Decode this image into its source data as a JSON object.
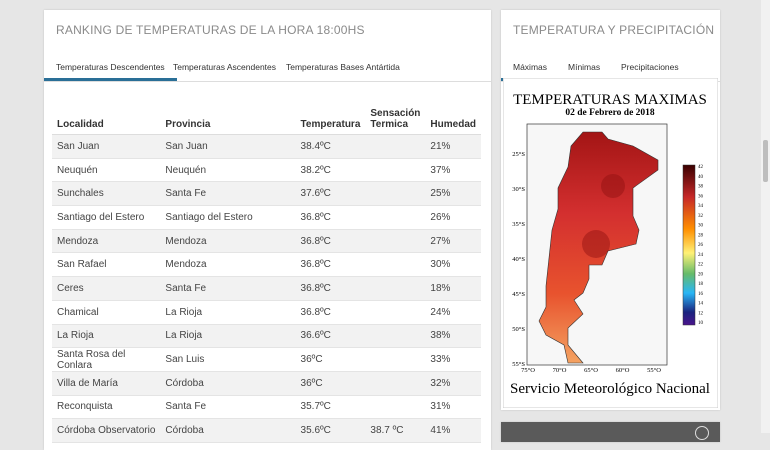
{
  "ranking": {
    "title": "RANKING DE TEMPERATURAS DE LA HORA 18:00HS",
    "tabs": [
      "Temperaturas Descendentes",
      "Temperaturas Ascendentes",
      "Temperaturas Bases Antártida"
    ],
    "table": {
      "headers": [
        "Localidad",
        "Provincia",
        "Temperatura",
        "Sensación Termica",
        "Humedad"
      ],
      "rows": [
        [
          "San Juan",
          "San Juan",
          "38.4ºC",
          null,
          "21%"
        ],
        [
          "Neuquén",
          "Neuquén",
          "38.2ºC",
          null,
          "37%"
        ],
        [
          "Sunchales",
          "Santa Fe",
          "37.6ºC",
          null,
          "25%"
        ],
        [
          "Santiago del Estero",
          "Santiago del Estero",
          "36.8ºC",
          null,
          "26%"
        ],
        [
          "Mendoza",
          "Mendoza",
          "36.8ºC",
          null,
          "27%"
        ],
        [
          "San Rafael",
          "Mendoza",
          "36.8ºC",
          null,
          "30%"
        ],
        [
          "Ceres",
          "Santa Fe",
          "36.8ºC",
          null,
          "18%"
        ],
        [
          "Chamical",
          "La Rioja",
          "36.8ºC",
          null,
          "24%"
        ],
        [
          "La Rioja",
          "La Rioja",
          "36.6ºC",
          null,
          "38%"
        ],
        [
          "Santa Rosa del Conlara",
          "San Luis",
          "36ºC",
          null,
          "33%"
        ],
        [
          "Villa de María",
          "Córdoba",
          "36ºC",
          null,
          "32%"
        ],
        [
          "Reconquista",
          "Santa Fe",
          "35.7ºC",
          null,
          "31%"
        ],
        [
          "Córdoba Observatorio",
          "Córdoba",
          "35.6ºC",
          "38.7 ºC",
          "41%"
        ]
      ]
    }
  },
  "weather": {
    "title": "TEMPERATURA Y PRECIPITACIÓN",
    "tabs": [
      "Máximas",
      "Mínimas",
      "Precipitaciones"
    ],
    "map": {
      "title": "TEMPERATURAS MAXIMAS",
      "date": "02 de Febrero de 2018",
      "footer": "Servicio Meteorológico Nacional",
      "lat_labels": [
        "25°S",
        "30°S",
        "35°S",
        "40°S",
        "45°S",
        "50°S",
        "55°S"
      ],
      "lon_labels": [
        "75°O",
        "70°O",
        "65°O",
        "60°O",
        "55°O"
      ],
      "scale_labels": [
        "42",
        "40",
        "38",
        "36",
        "34",
        "32",
        "30",
        "28",
        "26",
        "24",
        "22",
        "20",
        "18",
        "16",
        "14",
        "12",
        "10"
      ]
    }
  }
}
